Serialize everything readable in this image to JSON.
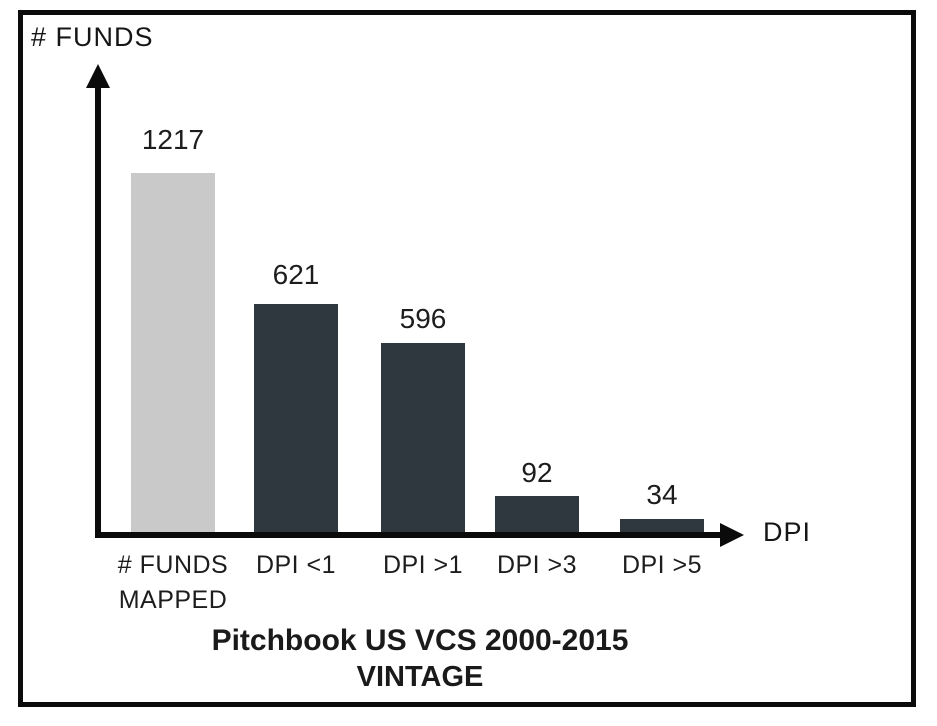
{
  "axes": {
    "y_label": "# FUNDS",
    "x_label": "DPI"
  },
  "bars": [
    {
      "value": "1217",
      "label": "# FUNDS MAPPED",
      "color": "#c9c9c9"
    },
    {
      "value": "621",
      "label": "DPI <1",
      "color": "#2f383e"
    },
    {
      "value": "596",
      "label": "DPI >1",
      "color": "#2f383e"
    },
    {
      "value": "92",
      "label": "DPI >3",
      "color": "#2f383e"
    },
    {
      "value": "34",
      "label": "DPI >5",
      "color": "#2f383e"
    }
  ],
  "title": {
    "line1": "Pitchbook US VCS 2000-2015",
    "line2": "VINTAGE"
  },
  "colors": {
    "bar_light": "#c9c9c9",
    "bar_dark": "#2f383e",
    "axis": "#0b0b0b",
    "text": "#1d1d1d",
    "background": "#ffffff"
  },
  "chart_data": {
    "type": "bar",
    "categories": [
      "# FUNDS MAPPED",
      "DPI <1",
      "DPI >1",
      "DPI >3",
      "DPI >5"
    ],
    "values": [
      1217,
      621,
      596,
      92,
      34
    ],
    "title": "Pitchbook US VCS 2000-2015 VINTAGE",
    "xlabel": "DPI",
    "ylabel": "# FUNDS",
    "legend": false,
    "grid": false,
    "data_labels": true,
    "bar_colors": [
      "#c9c9c9",
      "#2f383e",
      "#2f383e",
      "#2f383e",
      "#2f383e"
    ]
  }
}
